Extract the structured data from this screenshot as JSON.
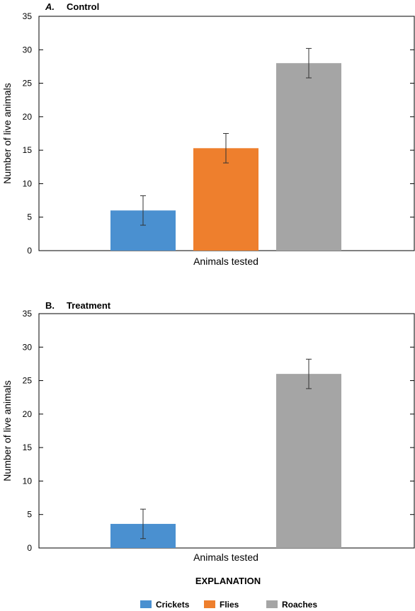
{
  "chart_data": [
    {
      "type": "bar",
      "panel_letter": "A.",
      "title": "Control",
      "xlabel": "Animals tested",
      "ylabel": "Number of live animals",
      "ylim": [
        0,
        35
      ],
      "yticks": [
        0,
        5,
        10,
        15,
        20,
        25,
        30,
        35
      ],
      "categories": [
        "Crickets",
        "Flies",
        "Roaches"
      ],
      "values": [
        6.0,
        15.3,
        28.0
      ],
      "error_low": [
        3.8,
        13.1,
        25.8
      ],
      "error_high": [
        8.2,
        17.5,
        30.2
      ],
      "colors": [
        "#4a90d0",
        "#ee7f2d",
        "#a5a5a5"
      ],
      "grid": false
    },
    {
      "type": "bar",
      "panel_letter": "B.",
      "title": "Treatment",
      "xlabel": "Animals tested",
      "ylabel": "Number of live animals",
      "ylim": [
        0,
        35
      ],
      "yticks": [
        0,
        5,
        10,
        15,
        20,
        25,
        30,
        35
      ],
      "categories": [
        "Crickets",
        "Flies",
        "Roaches"
      ],
      "values": [
        3.6,
        0,
        26.0
      ],
      "error_low": [
        1.4,
        null,
        23.8
      ],
      "error_high": [
        5.8,
        null,
        28.2
      ],
      "colors": [
        "#4a90d0",
        "#ee7f2d",
        "#a5a5a5"
      ],
      "grid": false
    }
  ],
  "legend": {
    "title": "EXPLANATION",
    "placement": "bottom-center",
    "items": [
      {
        "label": "Crickets",
        "color": "#4a90d0"
      },
      {
        "label": "Flies",
        "color": "#ee7f2d"
      },
      {
        "label": "Roaches",
        "color": "#a5a5a5"
      }
    ]
  }
}
